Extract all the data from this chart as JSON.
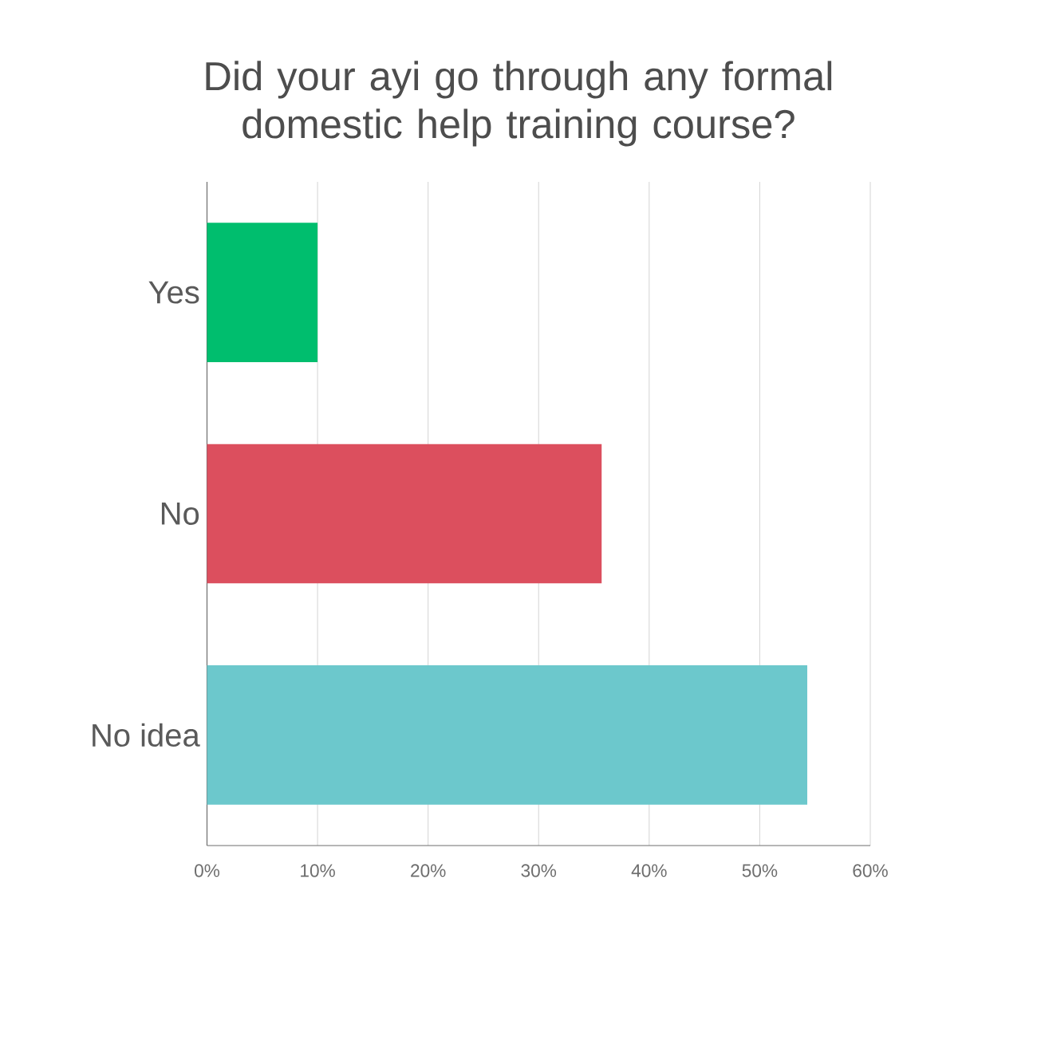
{
  "chart_data": {
    "type": "bar",
    "orientation": "horizontal",
    "title": "Did your ayi go through any formal domestic help training course?",
    "categories": [
      "Yes",
      "No",
      "No idea"
    ],
    "values": [
      10,
      35.7,
      54.3
    ],
    "colors": [
      "#00be6e",
      "#dc4f5e",
      "#6cc8cc"
    ],
    "xlim": [
      0,
      60
    ],
    "xticks": [
      {
        "value": 0,
        "label": "0%"
      },
      {
        "value": 10,
        "label": "10%"
      },
      {
        "value": 20,
        "label": "20%"
      },
      {
        "value": 30,
        "label": "30%"
      },
      {
        "value": 40,
        "label": "40%"
      },
      {
        "value": 50,
        "label": "50%"
      },
      {
        "value": 60,
        "label": "60%"
      }
    ],
    "grid": "x"
  }
}
